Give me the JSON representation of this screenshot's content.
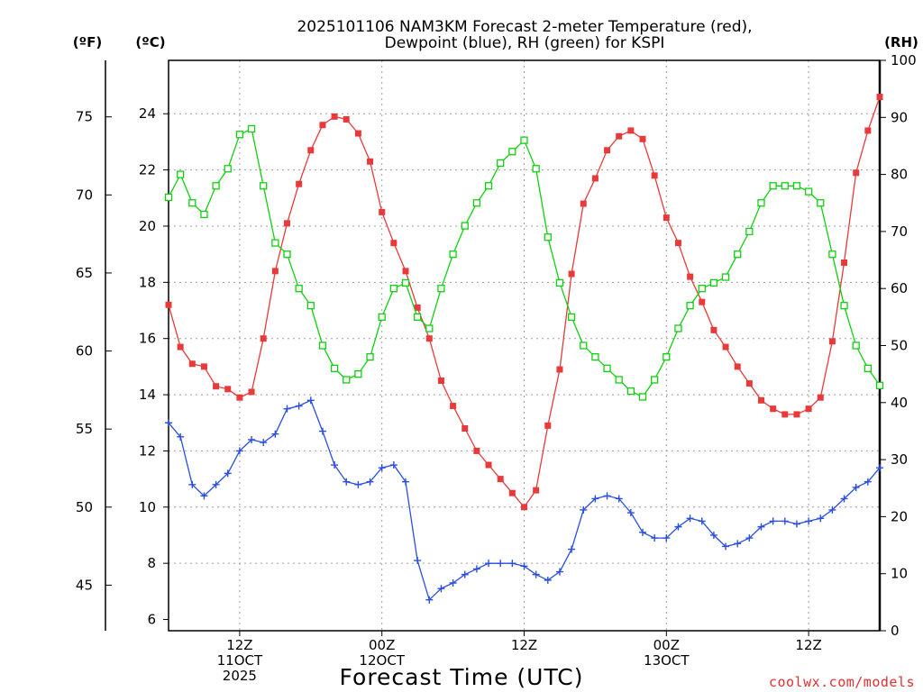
{
  "colors": {
    "temperature": "#e83a3a",
    "dewpoint": "#2a4fe0",
    "rh": "#10d010",
    "grid": "#a0a0a0",
    "credit": "#e03030"
  },
  "chart_data": {
    "type": "line",
    "title_line1": "2025101106 NAM3KM Forecast 2-meter Temperature (red),",
    "title_line2": "Dewpoint (blue), RH (green) for KSPI",
    "xlabel": "Forecast Time (UTC)",
    "credit": "coolwx.com/models",
    "left_unit_f": "(ºF)",
    "left_unit_c": "(ºC)",
    "right_unit": "(RH)",
    "x_range_hours": [
      6,
      66
    ],
    "celsius_range": [
      5.6,
      25.9
    ],
    "rh_range": [
      0,
      100
    ],
    "celsius_ticks": [
      6,
      8,
      10,
      12,
      14,
      16,
      18,
      20,
      22,
      24
    ],
    "fahrenheit_ticks": [
      45,
      50,
      55,
      60,
      65,
      70,
      75
    ],
    "rh_ticks": [
      0,
      10,
      20,
      30,
      40,
      50,
      60,
      70,
      80,
      90,
      100
    ],
    "x_ticks": [
      {
        "hour": 12,
        "lines": [
          "12Z",
          "11OCT",
          "2025"
        ]
      },
      {
        "hour": 24,
        "lines": [
          "00Z",
          "12OCT"
        ]
      },
      {
        "hour": 36,
        "lines": [
          "12Z"
        ]
      },
      {
        "hour": 48,
        "lines": [
          "00Z",
          "13OCT"
        ]
      },
      {
        "hour": 60,
        "lines": [
          "12Z"
        ]
      }
    ],
    "hours": [
      6,
      7,
      8,
      9,
      10,
      11,
      12,
      13,
      14,
      15,
      16,
      17,
      18,
      19,
      20,
      21,
      22,
      23,
      24,
      25,
      26,
      27,
      28,
      29,
      30,
      31,
      32,
      33,
      34,
      35,
      36,
      37,
      38,
      39,
      40,
      41,
      42,
      43,
      44,
      45,
      46,
      47,
      48,
      49,
      50,
      51,
      52,
      53,
      54,
      55,
      56,
      57,
      58,
      59,
      60,
      61,
      62,
      63,
      64,
      65,
      66
    ],
    "series": [
      {
        "name": "Temperature (°C)",
        "color_key": "temperature",
        "marker": "filled-square",
        "axis": "celsius",
        "values": [
          17.2,
          15.7,
          15.1,
          15.0,
          14.3,
          14.2,
          13.9,
          14.1,
          16.0,
          18.4,
          20.1,
          21.5,
          22.7,
          23.6,
          23.9,
          23.8,
          23.3,
          22.3,
          20.5,
          19.4,
          18.4,
          17.1,
          16.0,
          14.5,
          13.6,
          12.8,
          12.0,
          11.5,
          11.0,
          10.5,
          10.0,
          10.6,
          12.9,
          14.9,
          18.3,
          20.8,
          21.7,
          22.7,
          23.2,
          23.4,
          23.1,
          21.8,
          20.3,
          19.4,
          18.2,
          17.3,
          16.3,
          15.7,
          15.0,
          14.4,
          13.8,
          13.5,
          13.3,
          13.3,
          13.5,
          13.9,
          15.9,
          18.7,
          21.9,
          23.4,
          24.6
        ]
      },
      {
        "name": "Dewpoint (°C)",
        "color_key": "dewpoint",
        "marker": "plus",
        "axis": "celsius",
        "values": [
          13.0,
          12.5,
          10.8,
          10.4,
          10.8,
          11.2,
          12.0,
          12.4,
          12.3,
          12.6,
          13.5,
          13.6,
          13.8,
          12.7,
          11.5,
          10.9,
          10.8,
          10.9,
          11.4,
          11.5,
          10.9,
          8.1,
          6.7,
          7.1,
          7.3,
          7.6,
          7.8,
          8.0,
          8.0,
          8.0,
          7.9,
          7.6,
          7.4,
          7.7,
          8.5,
          9.9,
          10.3,
          10.4,
          10.3,
          9.8,
          9.1,
          8.9,
          8.9,
          9.3,
          9.6,
          9.5,
          9.0,
          8.6,
          8.7,
          8.9,
          9.3,
          9.5,
          9.5,
          9.4,
          9.5,
          9.6,
          9.9,
          10.3,
          10.7,
          10.9,
          11.4
        ]
      },
      {
        "name": "RH (%)",
        "color_key": "rh",
        "marker": "open-square",
        "axis": "rh",
        "values": [
          76,
          80,
          75,
          73,
          78,
          81,
          87,
          88,
          78,
          68,
          66,
          60,
          57,
          50,
          46,
          44,
          45,
          48,
          55,
          60,
          61,
          55,
          53,
          60,
          66,
          71,
          75,
          78,
          82,
          84,
          86,
          81,
          69,
          61,
          55,
          50,
          48,
          46,
          44,
          42,
          41,
          44,
          48,
          53,
          57,
          60,
          61,
          62,
          66,
          70,
          75,
          78,
          78,
          78,
          77,
          75,
          66,
          57,
          50,
          46,
          43
        ]
      }
    ]
  }
}
